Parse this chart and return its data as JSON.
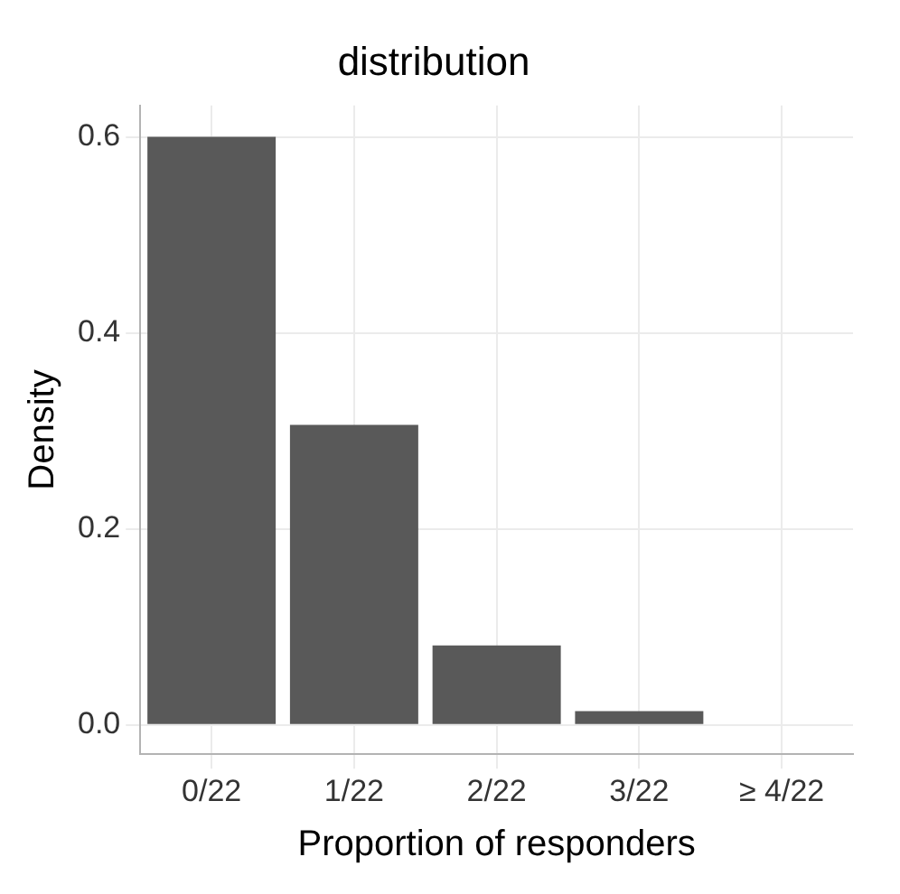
{
  "chart_data": {
    "type": "bar",
    "title": "distribution",
    "xlabel": "Proportion of responders",
    "ylabel": "Density",
    "categories": [
      "0/22",
      "1/22",
      "2/22",
      "3/22",
      "≥ 4/22"
    ],
    "values": [
      0.6,
      0.306,
      0.081,
      0.014,
      0
    ],
    "color": "#595959",
    "ylim": [
      -0.03,
      0.632
    ],
    "yticks": [
      {
        "value": 0,
        "label": "0.0"
      },
      {
        "value": 0.2,
        "label": "0.2"
      },
      {
        "value": 0.4,
        "label": "0.4"
      },
      {
        "value": 0.6,
        "label": "0.6"
      }
    ],
    "grid": true,
    "legend": false
  }
}
